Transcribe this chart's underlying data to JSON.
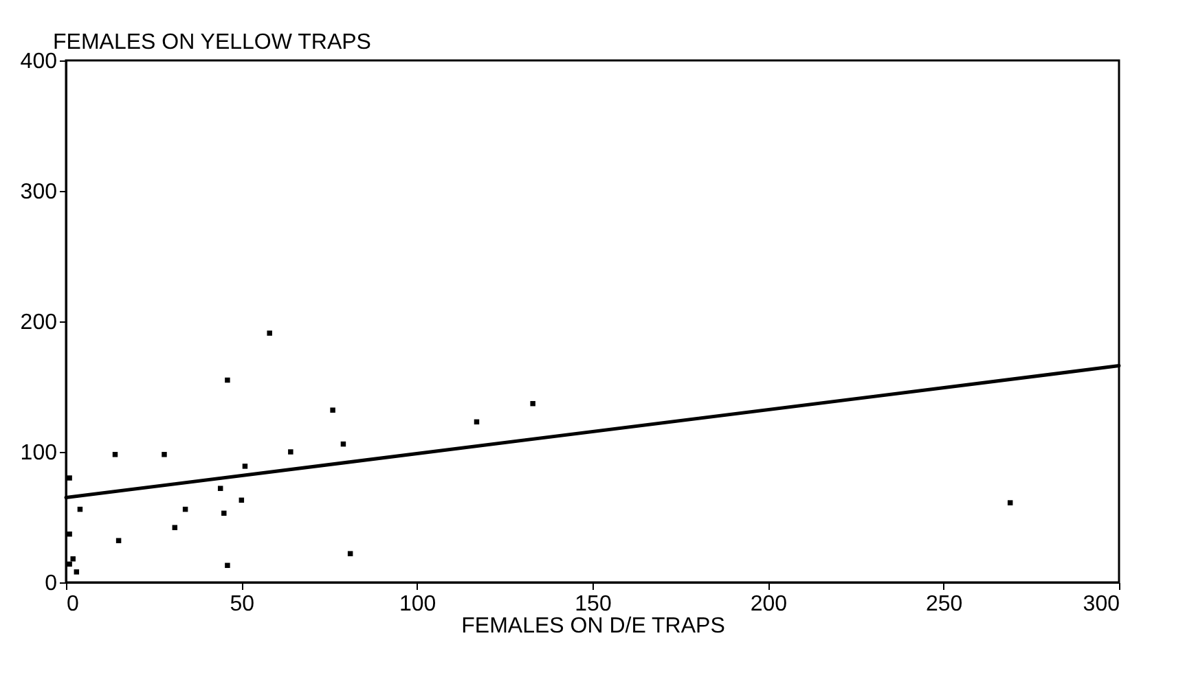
{
  "chart_data": {
    "type": "scatter",
    "ylabel": "FEMALES ON YELLOW TRAPS",
    "xlabel": "FEMALES ON D/E TRAPS",
    "xlim": [
      0,
      300
    ],
    "ylim": [
      0,
      400
    ],
    "xticks": [
      0,
      50,
      100,
      150,
      200,
      250,
      300
    ],
    "yticks": [
      0,
      100,
      200,
      300,
      400
    ],
    "grid": false,
    "series": [
      {
        "color": "#000000",
        "marker": "square",
        "x": [
          58,
          46,
          76,
          79,
          64,
          14,
          28,
          51,
          1,
          44,
          4,
          34,
          50,
          45,
          31,
          1,
          15,
          81,
          2,
          1,
          3,
          46,
          133,
          117,
          269
        ],
        "values": [
          191,
          155,
          132,
          106,
          100,
          98,
          98,
          89,
          80,
          72,
          56,
          56,
          63,
          53,
          42,
          37,
          32,
          22,
          18,
          14,
          8,
          13,
          137,
          123,
          61
        ]
      },
      {
        "type": "line",
        "color": "#000000",
        "x": [
          0,
          300
        ],
        "values": [
          65,
          166
        ],
        "line_style": "solid"
      }
    ]
  }
}
